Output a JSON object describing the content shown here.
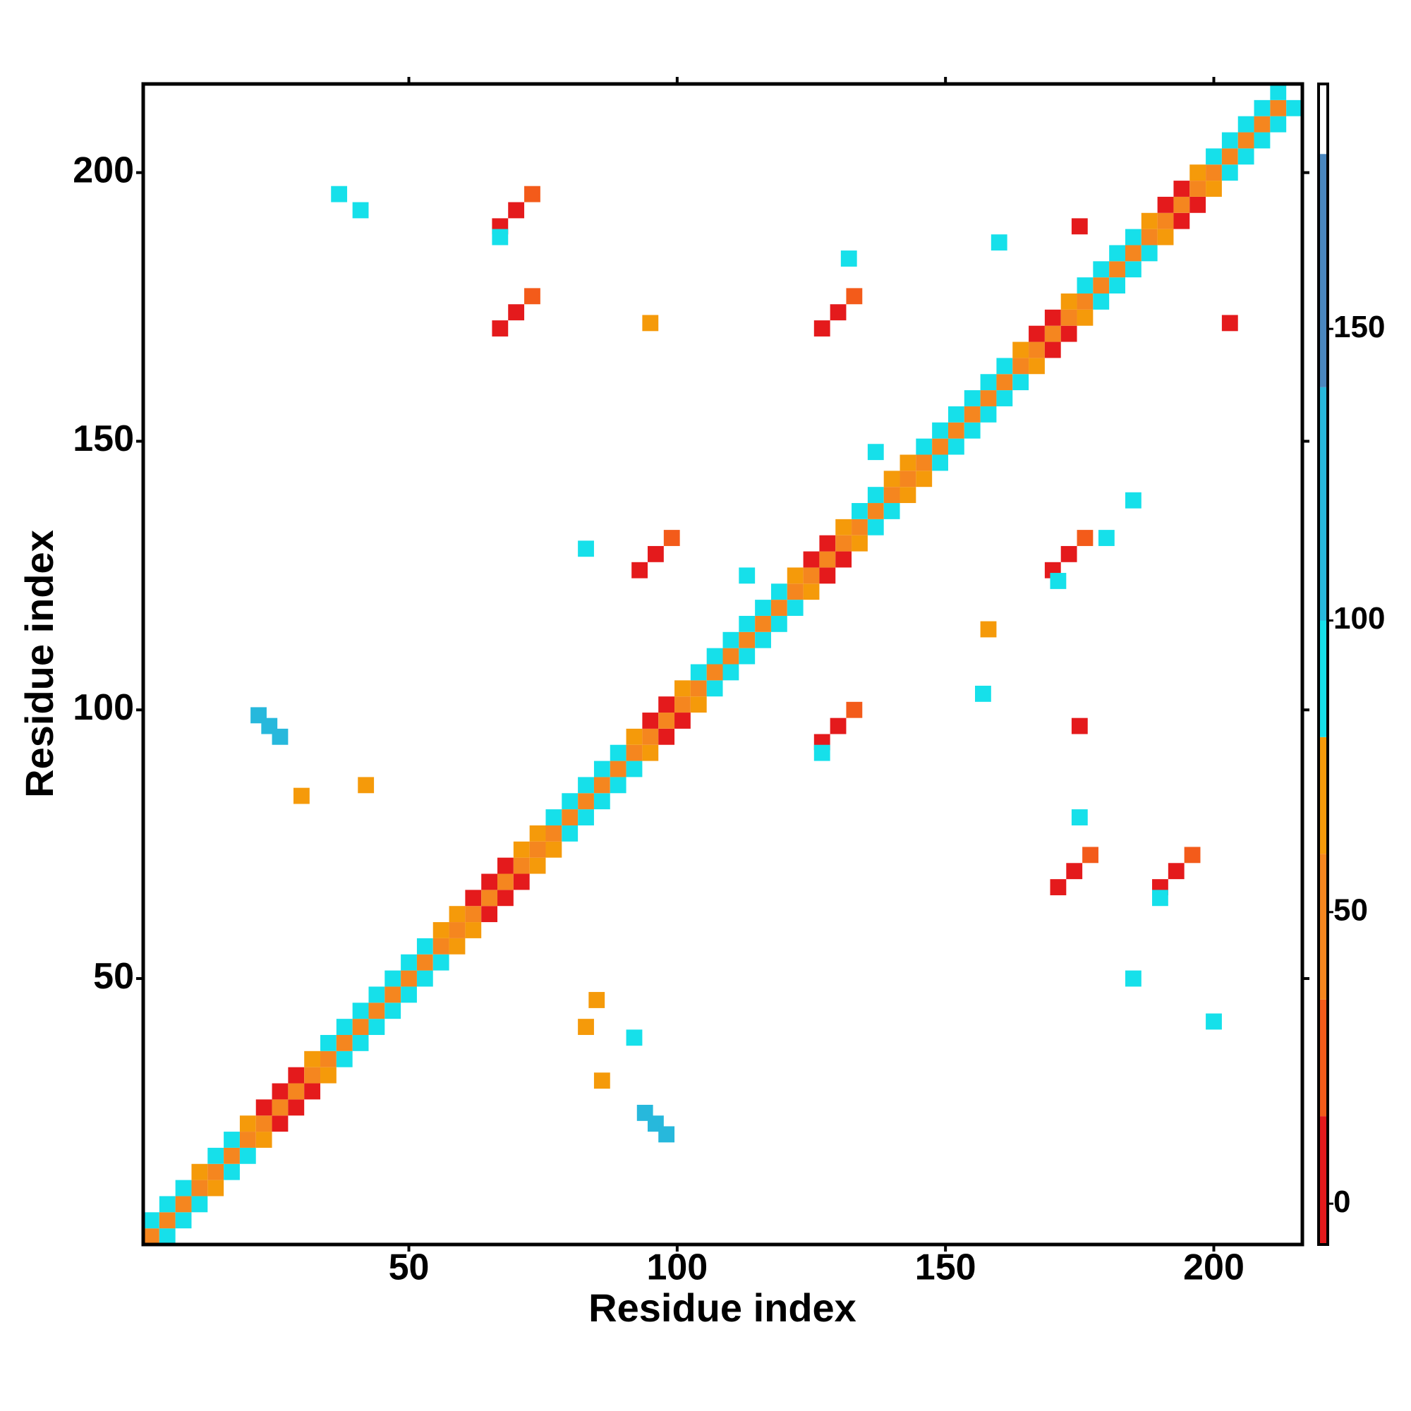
{
  "chart_data": {
    "type": "heatmap",
    "xlabel": "Residue index",
    "ylabel": "Residue index",
    "xlim": [
      0.5,
      216.5
    ],
    "ylim": [
      0.5,
      216.5
    ],
    "xticks": [
      50,
      100,
      150,
      200
    ],
    "yticks": [
      50,
      100,
      150,
      200
    ],
    "colorbar": {
      "bins": [
        -7,
        15,
        35,
        60,
        80,
        100,
        140,
        180,
        192
      ],
      "colors": [
        "#e41a1c",
        "#f35b1a",
        "#f5861f",
        "#f59a0a",
        "#16e0ea",
        "#27b8dc",
        "#4a87bf",
        "#ffffff"
      ],
      "lim": [
        -7,
        192
      ],
      "ticks": [
        0,
        50,
        100,
        150
      ]
    },
    "x": [
      2,
      5,
      2,
      5,
      8,
      5,
      8,
      11,
      8,
      11,
      14,
      11,
      14,
      17,
      14,
      17,
      20,
      17,
      20,
      23,
      20,
      23,
      26,
      23,
      26,
      29,
      26,
      29,
      32,
      29,
      32,
      35,
      32,
      35,
      38,
      35,
      38,
      41,
      38,
      41,
      44,
      41,
      44,
      47,
      44,
      47,
      50,
      47,
      50,
      53,
      50,
      53,
      56,
      53,
      56,
      59,
      56,
      59,
      62,
      59,
      62,
      65,
      62,
      65,
      68,
      65,
      68,
      71,
      68,
      71,
      74,
      71,
      74,
      77,
      74,
      77,
      80,
      77,
      80,
      83,
      80,
      83,
      86,
      83,
      86,
      89,
      86,
      89,
      92,
      89,
      92,
      95,
      92,
      95,
      98,
      95,
      98,
      101,
      98,
      101,
      104,
      101,
      104,
      107,
      104,
      107,
      110,
      107,
      110,
      113,
      110,
      113,
      116,
      113,
      116,
      119,
      116,
      119,
      122,
      119,
      122,
      125,
      122,
      125,
      128,
      125,
      128,
      131,
      128,
      131,
      134,
      131,
      134,
      137,
      134,
      137,
      140,
      137,
      140,
      143,
      140,
      143,
      146,
      143,
      146,
      149,
      146,
      149,
      152,
      149,
      152,
      155,
      152,
      155,
      158,
      155,
      158,
      161,
      158,
      161,
      164,
      161,
      164,
      167,
      164,
      167,
      170,
      167,
      170,
      173,
      170,
      173,
      176,
      173,
      176,
      179,
      176,
      179,
      182,
      179,
      182,
      185,
      182,
      185,
      188,
      185,
      188,
      191,
      188,
      191,
      194,
      191,
      194,
      197,
      194,
      197,
      200,
      197,
      200,
      203,
      200,
      203,
      206,
      203,
      206,
      209,
      206,
      209,
      212,
      209,
      212,
      215,
      212,
      67,
      70,
      73,
      190,
      193,
      196,
      67,
      70,
      73,
      171,
      174,
      177,
      93,
      96,
      99,
      127,
      130,
      133,
      170,
      173,
      176,
      127,
      130,
      133,
      22,
      24,
      26,
      94,
      96,
      98,
      67,
      190,
      127,
      171,
      37,
      41,
      95,
      132,
      160,
      175,
      185,
      203,
      175,
      157,
      158,
      85,
      83,
      86,
      30,
      42,
      185,
      200,
      92,
      137,
      83,
      113,
      175,
      180
    ],
    "y": [
      2,
      2,
      5,
      5,
      5,
      8,
      8,
      8,
      11,
      11,
      11,
      14,
      14,
      14,
      17,
      17,
      17,
      20,
      20,
      20,
      23,
      23,
      23,
      26,
      26,
      26,
      29,
      29,
      29,
      32,
      32,
      32,
      35,
      35,
      35,
      38,
      38,
      38,
      41,
      41,
      41,
      44,
      44,
      44,
      47,
      47,
      47,
      50,
      50,
      50,
      53,
      53,
      53,
      56,
      56,
      56,
      59,
      59,
      59,
      62,
      62,
      62,
      65,
      65,
      65,
      68,
      68,
      68,
      71,
      71,
      71,
      74,
      74,
      74,
      77,
      77,
      77,
      80,
      80,
      80,
      83,
      83,
      83,
      86,
      86,
      86,
      89,
      89,
      89,
      92,
      92,
      92,
      95,
      95,
      95,
      98,
      98,
      98,
      101,
      101,
      101,
      104,
      104,
      104,
      107,
      107,
      107,
      110,
      110,
      110,
      113,
      113,
      113,
      116,
      116,
      116,
      119,
      119,
      119,
      122,
      122,
      122,
      125,
      125,
      125,
      128,
      128,
      128,
      131,
      131,
      131,
      134,
      134,
      134,
      137,
      137,
      137,
      140,
      140,
      140,
      143,
      143,
      143,
      146,
      146,
      146,
      149,
      149,
      149,
      152,
      152,
      152,
      155,
      155,
      155,
      158,
      158,
      158,
      161,
      161,
      161,
      164,
      164,
      164,
      167,
      167,
      167,
      170,
      170,
      170,
      173,
      173,
      173,
      176,
      176,
      176,
      179,
      179,
      179,
      182,
      182,
      182,
      185,
      185,
      185,
      188,
      188,
      188,
      191,
      191,
      191,
      194,
      194,
      194,
      197,
      197,
      197,
      200,
      200,
      200,
      203,
      203,
      203,
      206,
      206,
      206,
      209,
      209,
      209,
      212,
      212,
      212,
      215,
      190,
      193,
      196,
      67,
      70,
      73,
      171,
      174,
      177,
      67,
      70,
      73,
      126,
      129,
      132,
      94,
      97,
      100,
      126,
      129,
      132,
      171,
      174,
      177,
      99,
      97,
      95,
      25,
      23,
      21,
      188,
      65,
      92,
      124,
      196,
      193,
      172,
      184,
      187,
      190,
      139,
      172,
      97,
      103,
      115,
      46,
      41,
      31,
      84,
      86,
      50,
      42,
      39,
      148,
      130,
      125,
      80,
      132
    ],
    "values": [
      45,
      90,
      90,
      45,
      90,
      90,
      45,
      90,
      90,
      45,
      65,
      65,
      45,
      90,
      90,
      45,
      90,
      90,
      45,
      65,
      65,
      45,
      10,
      10,
      45,
      10,
      10,
      45,
      10,
      10,
      45,
      65,
      65,
      45,
      90,
      90,
      45,
      90,
      90,
      45,
      90,
      90,
      45,
      90,
      90,
      45,
      90,
      90,
      45,
      90,
      90,
      45,
      90,
      90,
      45,
      65,
      65,
      45,
      65,
      65,
      45,
      10,
      10,
      45,
      10,
      10,
      45,
      10,
      10,
      45,
      65,
      65,
      45,
      65,
      65,
      45,
      90,
      90,
      45,
      90,
      90,
      45,
      90,
      90,
      45,
      90,
      90,
      45,
      90,
      90,
      45,
      65,
      65,
      45,
      10,
      10,
      45,
      10,
      10,
      45,
      65,
      65,
      45,
      90,
      90,
      45,
      90,
      90,
      45,
      90,
      90,
      45,
      90,
      90,
      45,
      90,
      90,
      45,
      90,
      90,
      45,
      65,
      65,
      45,
      10,
      10,
      45,
      10,
      10,
      45,
      65,
      65,
      45,
      90,
      90,
      45,
      90,
      90,
      45,
      65,
      65,
      45,
      65,
      65,
      45,
      90,
      90,
      45,
      90,
      90,
      45,
      90,
      90,
      45,
      90,
      90,
      45,
      90,
      90,
      45,
      90,
      90,
      45,
      65,
      65,
      45,
      10,
      10,
      45,
      10,
      10,
      45,
      65,
      65,
      45,
      90,
      90,
      45,
      90,
      90,
      45,
      90,
      90,
      45,
      90,
      90,
      45,
      65,
      65,
      45,
      10,
      10,
      45,
      10,
      10,
      45,
      65,
      65,
      45,
      90,
      90,
      45,
      90,
      90,
      45,
      90,
      90,
      45,
      90,
      90,
      45,
      90,
      90,
      10,
      10,
      30,
      10,
      10,
      30,
      10,
      10,
      30,
      10,
      10,
      30,
      10,
      10,
      30,
      10,
      10,
      30,
      10,
      10,
      30,
      10,
      10,
      30,
      120,
      120,
      120,
      120,
      120,
      120,
      90,
      90,
      90,
      90,
      90,
      90,
      65,
      90,
      90,
      10,
      90,
      10,
      10,
      90,
      65,
      65,
      65,
      65,
      65,
      65,
      90,
      90,
      90,
      90,
      90,
      90,
      90,
      90
    ]
  }
}
